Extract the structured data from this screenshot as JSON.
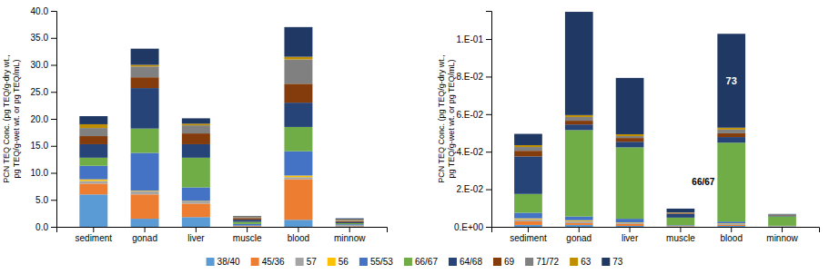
{
  "chart_data": [
    {
      "type": "bar",
      "stacked": true,
      "legend": "bottom",
      "categories": [
        "sediment",
        "gonad",
        "liver",
        "muscle",
        "blood",
        "minnow"
      ],
      "y_label": "PCN TEQ Conc. (pg TEQ/g-dry wt.,\npg TEQ/g-wet wt. or pg TEQ/mL)",
      "ylim": [
        0,
        40
      ],
      "yticks": [
        {
          "value": 0,
          "label": "0.0"
        },
        {
          "value": 5,
          "label": "5.0"
        },
        {
          "value": 10,
          "label": "10.0"
        },
        {
          "value": 15,
          "label": "15.0"
        },
        {
          "value": 20,
          "label": "20.0"
        },
        {
          "value": 25,
          "label": "25.0"
        },
        {
          "value": 30,
          "label": "30.0"
        },
        {
          "value": 35,
          "label": "35.0"
        },
        {
          "value": 40,
          "label": "40.0"
        }
      ],
      "series": [
        {
          "name": "38/40",
          "color": "#5b9bd5",
          "values": [
            6.0,
            1.5,
            1.8,
            0.05,
            1.3,
            0.1
          ]
        },
        {
          "name": "45/36",
          "color": "#ed7d31",
          "values": [
            2.0,
            4.5,
            2.5,
            0.1,
            7.5,
            0.1
          ]
        },
        {
          "name": "57",
          "color": "#a5a5a5",
          "values": [
            0.5,
            0.6,
            0.4,
            0.05,
            0.4,
            0.05
          ]
        },
        {
          "name": "56",
          "color": "#ffc000",
          "values": [
            0.3,
            0.1,
            0.1,
            0.02,
            0.3,
            0.02
          ]
        },
        {
          "name": "55/53",
          "color": "#4472c4",
          "values": [
            2.5,
            7.0,
            2.5,
            0.3,
            4.5,
            0.2
          ]
        },
        {
          "name": "66/67",
          "color": "#70ad47",
          "values": [
            1.5,
            4.5,
            5.5,
            0.4,
            4.5,
            0.2
          ]
        },
        {
          "name": "64/68",
          "color": "#264478",
          "values": [
            2.5,
            7.5,
            2.5,
            0.4,
            4.5,
            0.2
          ]
        },
        {
          "name": "69",
          "color": "#843c0c",
          "values": [
            1.5,
            2.0,
            2.0,
            0.3,
            3.5,
            0.2
          ]
        },
        {
          "name": "71/72",
          "color": "#808080",
          "values": [
            1.5,
            2.0,
            1.5,
            0.2,
            4.5,
            0.2
          ]
        },
        {
          "name": "63",
          "color": "#bf8f00",
          "values": [
            0.7,
            0.3,
            0.3,
            0.1,
            0.5,
            0.1
          ]
        },
        {
          "name": "73",
          "color": "#1f3864",
          "values": [
            1.5,
            3.0,
            1.0,
            0.1,
            5.5,
            0.2
          ]
        }
      ]
    },
    {
      "type": "bar",
      "stacked": true,
      "categories": [
        "sediment",
        "gonad",
        "liver",
        "muscle",
        "blood",
        "minnow"
      ],
      "y_label": "PCN TEQ Conc. (pg TEQ/g-dry wt.,\npg TEQ/g-wet wt. or pg TEQ/mL)",
      "ylim": [
        0,
        0.115
      ],
      "yticks": [
        {
          "value": 0.0,
          "label": "0.E+00"
        },
        {
          "value": 0.02,
          "label": "2.E-02"
        },
        {
          "value": 0.04,
          "label": "4.E-02"
        },
        {
          "value": 0.06,
          "label": "6.E-02"
        },
        {
          "value": 0.08,
          "label": "8.E-02"
        },
        {
          "value": 0.1,
          "label": "1.E-01"
        }
      ],
      "series": [
        {
          "name": "38/40",
          "color": "#5b9bd5",
          "values": [
            0.001,
            0.001,
            0.0005,
            0.0002,
            0.0005,
            0.0001
          ]
        },
        {
          "name": "45/36",
          "color": "#ed7d31",
          "values": [
            0.002,
            0.001,
            0.001,
            0.0002,
            0.0005,
            0.0001
          ]
        },
        {
          "name": "57",
          "color": "#a5a5a5",
          "values": [
            0.001,
            0.001,
            0.0005,
            0.0001,
            0.0005,
            0.0001
          ]
        },
        {
          "name": "56",
          "color": "#ffc000",
          "values": [
            0.0005,
            0.0005,
            0.0003,
            0.0001,
            0.0003,
            5e-05
          ]
        },
        {
          "name": "55/53",
          "color": "#4472c4",
          "values": [
            0.003,
            0.002,
            0.002,
            0.0003,
            0.001,
            0.0002
          ]
        },
        {
          "name": "66/67",
          "color": "#70ad47",
          "values": [
            0.01,
            0.046,
            0.038,
            0.004,
            0.042,
            0.005
          ]
        },
        {
          "name": "64/68",
          "color": "#264478",
          "values": [
            0.02,
            0.003,
            0.003,
            0.002,
            0.003,
            0.0005
          ]
        },
        {
          "name": "69",
          "color": "#843c0c",
          "values": [
            0.003,
            0.002,
            0.002,
            0.0003,
            0.002,
            0.0002
          ]
        },
        {
          "name": "71/72",
          "color": "#808080",
          "values": [
            0.002,
            0.002,
            0.001,
            0.0003,
            0.002,
            0.0002
          ]
        },
        {
          "name": "63",
          "color": "#bf8f00",
          "values": [
            0.001,
            0.001,
            0.001,
            0.0002,
            0.001,
            0.0001
          ]
        },
        {
          "name": "73",
          "color": "#1f3864",
          "values": [
            0.006,
            0.055,
            0.03,
            0.002,
            0.05,
            0.0003
          ]
        }
      ],
      "annotations": [
        {
          "text": "73",
          "category": "blood",
          "series": "73",
          "color": "white"
        },
        {
          "text": "66/67",
          "category": "blood",
          "series": "66/67",
          "color": "black"
        }
      ]
    }
  ]
}
